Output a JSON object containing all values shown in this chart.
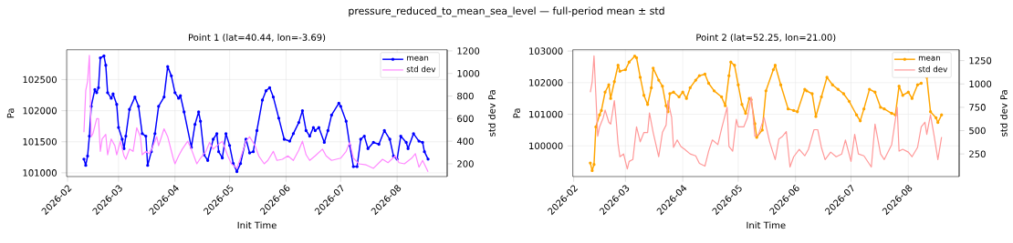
{
  "chart_data": [
    {
      "type": "line",
      "title": "Point 1 (lat=40.44, lon=-3.69)",
      "xlabel": "Init Time",
      "ylabel": "Pa",
      "y2label": "std dev Pa",
      "annotations": [
        "pressure_reduced_to_mean_sea_level — full-period mean ± std"
      ],
      "xlim": [
        "2026-01-31T12:00",
        "2026-08-28T12:00"
      ],
      "xticks": [
        {
          "value": "2026-02-01",
          "label": "2026-02"
        },
        {
          "value": "2026-03-01",
          "label": "2026-03"
        },
        {
          "value": "2026-04-01",
          "label": "2026-04"
        },
        {
          "value": "2026-05-01",
          "label": "2026-05"
        },
        {
          "value": "2026-06-01",
          "label": "2026-06"
        },
        {
          "value": "2026-07-01",
          "label": "2026-07"
        },
        {
          "value": "2026-08-01",
          "label": "2026-08"
        }
      ],
      "ylim": [
        100940,
        102980
      ],
      "yticks": [
        101000,
        101500,
        102000,
        102500
      ],
      "y2lim": [
        87,
        1210
      ],
      "y2ticks": [
        200,
        400,
        600,
        800,
        1000,
        1200
      ],
      "grid": true,
      "legend": "top right",
      "series": [
        {
          "name": "mean",
          "color": "#0000ff",
          "marker": "circle",
          "x": [
            "2026-02-10",
            "2026-02-11",
            "2026-02-12",
            "2026-02-13",
            "2026-02-14",
            "2026-02-16",
            "2026-02-17",
            "2026-02-18",
            "2026-02-19",
            "2026-02-21",
            "2026-02-22",
            "2026-02-23",
            "2026-02-25",
            "2026-02-26",
            "2026-02-28",
            "2026-03-01",
            "2026-03-03",
            "2026-03-04",
            "2026-03-05",
            "2026-03-07",
            "2026-03-10",
            "2026-03-12",
            "2026-03-14",
            "2026-03-16",
            "2026-03-17",
            "2026-03-19",
            "2026-03-21",
            "2026-03-23",
            "2026-03-26",
            "2026-03-28",
            "2026-03-30",
            "2026-04-01",
            "2026-04-03",
            "2026-04-04",
            "2026-04-06",
            "2026-04-10",
            "2026-04-12",
            "2026-04-14",
            "2026-04-15",
            "2026-04-17",
            "2026-04-19",
            "2026-04-22",
            "2026-04-24",
            "2026-04-25",
            "2026-04-27",
            "2026-04-29",
            "2026-05-01",
            "2026-05-03",
            "2026-05-05",
            "2026-05-07",
            "2026-05-10",
            "2026-05-12",
            "2026-05-14",
            "2026-05-16",
            "2026-05-19",
            "2026-05-21",
            "2026-05-23",
            "2026-05-25",
            "2026-05-28",
            "2026-05-31",
            "2026-06-03",
            "2026-06-05",
            "2026-06-08",
            "2026-06-10",
            "2026-06-12",
            "2026-06-14",
            "2026-06-16",
            "2026-06-17",
            "2026-06-19",
            "2026-06-22",
            "2026-06-24",
            "2026-06-26",
            "2026-06-30",
            "2026-07-01",
            "2026-07-04",
            "2026-07-06",
            "2026-07-08",
            "2026-07-10",
            "2026-07-12",
            "2026-07-14",
            "2026-07-16",
            "2026-07-19",
            "2026-07-22",
            "2026-07-25",
            "2026-07-28",
            "2026-07-30",
            "2026-08-01",
            "2026-08-03",
            "2026-08-06",
            "2026-08-07",
            "2026-08-10",
            "2026-08-13",
            "2026-08-15",
            "2026-08-16",
            "2026-08-18"
          ],
          "values": [
            101220,
            101120,
            101270,
            101590,
            102070,
            102340,
            102290,
            102370,
            102850,
            102880,
            102730,
            102290,
            102200,
            102270,
            102100,
            101730,
            101540,
            101390,
            101590,
            102020,
            102220,
            102070,
            101630,
            101590,
            101120,
            101340,
            101630,
            102070,
            102220,
            102710,
            102560,
            102290,
            102200,
            102240,
            101980,
            101410,
            101780,
            101980,
            101830,
            101290,
            101200,
            101540,
            101630,
            101340,
            101240,
            101630,
            101440,
            101150,
            101020,
            101150,
            101540,
            101320,
            101340,
            101680,
            102170,
            102320,
            102370,
            102220,
            101880,
            101540,
            101510,
            101630,
            101810,
            102000,
            101680,
            101590,
            101730,
            101680,
            101730,
            101490,
            101680,
            101930,
            102120,
            102070,
            101830,
            101440,
            101100,
            101100,
            101540,
            101590,
            101390,
            101490,
            101460,
            101680,
            101540,
            101270,
            101220,
            101590,
            101490,
            101390,
            101630,
            101510,
            101490,
            101340,
            101220
          ]
        },
        {
          "name": "std dev",
          "color": "#ff88ff",
          "marker": "none",
          "axis": "y2",
          "x": [
            "2026-02-10",
            "2026-02-11",
            "2026-02-12",
            "2026-02-13",
            "2026-02-14",
            "2026-02-15",
            "2026-02-17",
            "2026-02-18",
            "2026-02-19",
            "2026-02-20",
            "2026-02-22",
            "2026-02-23",
            "2026-02-25",
            "2026-02-27",
            "2026-02-28",
            "2026-03-02",
            "2026-03-04",
            "2026-03-05",
            "2026-03-07",
            "2026-03-09",
            "2026-03-11",
            "2026-03-13",
            "2026-03-14",
            "2026-03-16",
            "2026-03-18",
            "2026-03-19",
            "2026-03-22",
            "2026-03-23",
            "2026-03-26",
            "2026-03-28",
            "2026-03-31",
            "2026-04-01",
            "2026-04-03",
            "2026-04-05",
            "2026-04-08",
            "2026-04-10",
            "2026-04-13",
            "2026-04-15",
            "2026-04-18",
            "2026-04-20",
            "2026-04-22",
            "2026-04-24",
            "2026-04-27",
            "2026-04-30",
            "2026-05-02",
            "2026-05-05",
            "2026-05-07",
            "2026-05-10",
            "2026-05-12",
            "2026-05-15",
            "2026-05-17",
            "2026-05-20",
            "2026-05-22",
            "2026-05-25",
            "2026-05-27",
            "2026-05-30",
            "2026-06-02",
            "2026-06-05",
            "2026-06-08",
            "2026-06-10",
            "2026-06-12",
            "2026-06-14",
            "2026-06-17",
            "2026-06-21",
            "2026-06-23",
            "2026-06-26",
            "2026-07-01",
            "2026-07-04",
            "2026-07-06",
            "2026-07-08",
            "2026-07-11",
            "2026-07-15",
            "2026-07-19",
            "2026-07-24",
            "2026-07-27",
            "2026-07-31",
            "2026-08-02",
            "2026-08-05",
            "2026-08-09",
            "2026-08-11",
            "2026-08-13",
            "2026-08-15",
            "2026-08-18"
          ],
          "values": [
            480,
            850,
            930,
            1160,
            440,
            470,
            600,
            600,
            310,
            420,
            460,
            280,
            420,
            360,
            280,
            400,
            270,
            240,
            330,
            310,
            520,
            440,
            280,
            310,
            290,
            320,
            440,
            360,
            510,
            440,
            250,
            200,
            270,
            330,
            400,
            330,
            200,
            250,
            310,
            390,
            330,
            360,
            400,
            270,
            200,
            160,
            250,
            400,
            440,
            360,
            270,
            200,
            230,
            310,
            230,
            240,
            270,
            230,
            320,
            400,
            280,
            230,
            270,
            330,
            270,
            230,
            250,
            310,
            390,
            250,
            200,
            190,
            160,
            240,
            210,
            270,
            210,
            200,
            250,
            290,
            170,
            230,
            130
          ]
        }
      ]
    },
    {
      "type": "line",
      "title": "Point 2 (lat=52.25, lon=21.00)",
      "xlabel": "Init Time",
      "ylabel": "Pa",
      "y2label": "std dev Pa",
      "xlim": [
        "2026-01-31T12:00",
        "2026-08-28T12:00"
      ],
      "xticks": [
        {
          "value": "2026-02-01",
          "label": "2026-02"
        },
        {
          "value": "2026-03-01",
          "label": "2026-03"
        },
        {
          "value": "2026-04-01",
          "label": "2026-04"
        },
        {
          "value": "2026-05-01",
          "label": "2026-05"
        },
        {
          "value": "2026-06-01",
          "label": "2026-06"
        },
        {
          "value": "2026-07-01",
          "label": "2026-07"
        },
        {
          "value": "2026-08-01",
          "label": "2026-08"
        }
      ],
      "ylim": [
        99030,
        103040
      ],
      "yticks": [
        100000,
        101000,
        102000,
        103000
      ],
      "y2lim": [
        8,
        1366
      ],
      "y2ticks": [
        250,
        500,
        750,
        1000,
        1250
      ],
      "grid": true,
      "legend": "top right",
      "series": [
        {
          "name": "mean",
          "color": "#ffa500",
          "marker": "circle",
          "x": [
            "2026-02-10",
            "2026-02-11",
            "2026-02-12",
            "2026-02-13",
            "2026-02-15",
            "2026-02-16",
            "2026-02-18",
            "2026-02-20",
            "2026-02-21",
            "2026-02-23",
            "2026-02-25",
            "2026-02-26",
            "2026-03-01",
            "2026-03-03",
            "2026-03-06",
            "2026-03-07",
            "2026-03-09",
            "2026-03-11",
            "2026-03-13",
            "2026-03-15",
            "2026-03-16",
            "2026-03-19",
            "2026-03-21",
            "2026-03-23",
            "2026-03-24",
            "2026-03-25",
            "2026-03-27",
            "2026-03-30",
            "2026-04-01",
            "2026-04-03",
            "2026-04-05",
            "2026-04-08",
            "2026-04-10",
            "2026-04-13",
            "2026-04-15",
            "2026-04-18",
            "2026-04-22",
            "2026-04-24",
            "2026-04-26",
            "2026-04-27",
            "2026-04-29",
            "2026-05-01",
            "2026-05-03",
            "2026-05-05",
            "2026-05-07",
            "2026-05-08",
            "2026-05-10",
            "2026-05-11",
            "2026-05-14",
            "2026-05-16",
            "2026-05-20",
            "2026-05-21",
            "2026-05-24",
            "2026-05-28",
            "2026-05-31",
            "2026-06-02",
            "2026-06-06",
            "2026-06-07",
            "2026-06-10",
            "2026-06-12",
            "2026-06-15",
            "2026-06-18",
            "2026-06-21",
            "2026-06-24",
            "2026-06-27",
            "2026-06-30",
            "2026-07-04",
            "2026-07-06",
            "2026-07-08",
            "2026-07-11",
            "2026-07-14",
            "2026-07-17",
            "2026-07-19",
            "2026-07-23",
            "2026-07-25",
            "2026-07-27",
            "2026-07-29",
            "2026-08-01",
            "2026-08-03",
            "2026-08-06",
            "2026-08-08",
            "2026-08-10",
            "2026-08-11",
            "2026-08-13",
            "2026-08-16",
            "2026-08-17",
            "2026-08-19"
          ],
          "values": [
            99460,
            99220,
            99410,
            100600,
            100980,
            101120,
            101700,
            101930,
            101500,
            102030,
            102550,
            102360,
            102410,
            102650,
            102840,
            102790,
            102170,
            101600,
            101310,
            101840,
            102460,
            102080,
            101890,
            101270,
            101080,
            101650,
            101700,
            101550,
            101700,
            101500,
            101840,
            102080,
            102220,
            102270,
            101980,
            101740,
            101550,
            101270,
            102220,
            102650,
            102550,
            101930,
            101310,
            101030,
            101500,
            101460,
            100700,
            100270,
            100500,
            101740,
            102410,
            102550,
            101930,
            101170,
            101120,
            101080,
            101790,
            101740,
            101650,
            100930,
            101550,
            102170,
            101930,
            101790,
            101650,
            101410,
            100980,
            100790,
            101170,
            101790,
            101700,
            101220,
            101170,
            101030,
            100980,
            101890,
            101600,
            101700,
            101500,
            101930,
            101980,
            null,
            102170,
            101080,
            100890,
            100740,
            100980
          ]
        },
        {
          "name": "std dev",
          "color": "#ff9999",
          "marker": "none",
          "axis": "y2",
          "x": [
            "2026-02-10",
            "2026-02-11",
            "2026-02-12",
            "2026-02-13",
            "2026-02-14",
            "2026-02-15",
            "2026-02-17",
            "2026-02-18",
            "2026-02-20",
            "2026-02-21",
            "2026-02-23",
            "2026-02-24",
            "2026-02-25",
            "2026-02-26",
            "2026-02-28",
            "2026-03-02",
            "2026-03-03",
            "2026-03-05",
            "2026-03-07",
            "2026-03-09",
            "2026-03-11",
            "2026-03-13",
            "2026-03-14",
            "2026-03-16",
            "2026-03-19",
            "2026-03-21",
            "2026-03-23",
            "2026-03-24",
            "2026-03-26",
            "2026-03-27",
            "2026-03-29",
            "2026-03-31",
            "2026-04-02",
            "2026-04-05",
            "2026-04-08",
            "2026-04-10",
            "2026-04-13",
            "2026-04-15",
            "2026-04-17",
            "2026-04-20",
            "2026-04-22",
            "2026-04-25",
            "2026-04-26",
            "2026-04-28",
            "2026-04-30",
            "2026-05-01",
            "2026-05-04",
            "2026-05-06",
            "2026-05-08",
            "2026-05-09",
            "2026-05-10",
            "2026-05-12",
            "2026-05-15",
            "2026-05-18",
            "2026-05-21",
            "2026-05-23",
            "2026-05-25",
            "2026-05-27",
            "2026-05-29",
            "2026-05-31",
            "2026-06-03",
            "2026-06-06",
            "2026-06-08",
            "2026-06-11",
            "2026-06-13",
            "2026-06-15",
            "2026-06-17",
            "2026-06-20",
            "2026-06-23",
            "2026-06-26",
            "2026-06-28",
            "2026-07-01",
            "2026-07-03",
            "2026-07-05",
            "2026-07-08",
            "2026-07-12",
            "2026-07-14",
            "2026-07-17",
            "2026-07-19",
            "2026-07-23",
            "2026-07-26",
            "2026-07-27",
            "2026-07-29",
            "2026-08-01",
            "2026-08-03",
            "2026-08-06",
            "2026-08-08",
            "2026-08-10",
            "2026-08-11",
            "2026-08-13",
            "2026-08-15",
            "2026-08-17",
            "2026-08-19"
          ],
          "values": [
            910,
            1020,
            1300,
            880,
            440,
            540,
            640,
            720,
            590,
            570,
            820,
            610,
            360,
            220,
            250,
            90,
            170,
            190,
            540,
            380,
            480,
            480,
            690,
            480,
            220,
            480,
            560,
            820,
            640,
            320,
            400,
            330,
            300,
            250,
            230,
            150,
            120,
            280,
            400,
            350,
            520,
            750,
            330,
            280,
            620,
            540,
            540,
            640,
            860,
            670,
            440,
            460,
            640,
            380,
            190,
            410,
            440,
            490,
            110,
            220,
            300,
            230,
            300,
            510,
            510,
            320,
            190,
            270,
            220,
            250,
            400,
            170,
            460,
            250,
            230,
            110,
            570,
            250,
            190,
            350,
            750,
            280,
            300,
            270,
            220,
            320,
            540,
            590,
            460,
            670,
            440,
            190,
            430
          ]
        }
      ]
    }
  ]
}
